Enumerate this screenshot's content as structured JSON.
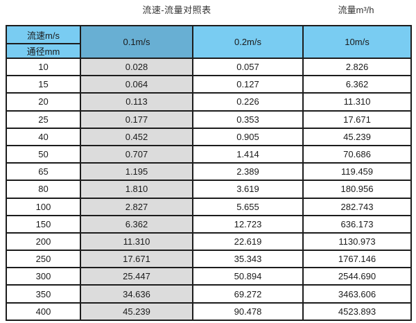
{
  "page": {
    "title": "流速-流量对照表",
    "unit_label": "流量m³/h"
  },
  "table": {
    "corner_top": "流速m/s",
    "corner_bottom": "通径mm",
    "speed_columns": [
      "0.1m/s",
      "0.2m/s",
      "10m/s"
    ],
    "rows": [
      {
        "diameter": "10",
        "values": [
          "0.028",
          "0.057",
          "2.826"
        ]
      },
      {
        "diameter": "15",
        "values": [
          "0.064",
          "0.127",
          "6.362"
        ]
      },
      {
        "diameter": "20",
        "values": [
          "0.113",
          "0.226",
          "11.310"
        ]
      },
      {
        "diameter": "25",
        "values": [
          "0.177",
          "0.353",
          "17.671"
        ]
      },
      {
        "diameter": "40",
        "values": [
          "0.452",
          "0.905",
          "45.239"
        ]
      },
      {
        "diameter": "50",
        "values": [
          "0.707",
          "1.414",
          "70.686"
        ]
      },
      {
        "diameter": "65",
        "values": [
          "1.195",
          "2.389",
          "119.459"
        ]
      },
      {
        "diameter": "80",
        "values": [
          "1.810",
          "3.619",
          "180.956"
        ]
      },
      {
        "diameter": "100",
        "values": [
          "2.827",
          "5.655",
          "282.743"
        ]
      },
      {
        "diameter": "150",
        "values": [
          "6.362",
          "12.723",
          "636.173"
        ]
      },
      {
        "diameter": "200",
        "values": [
          "11.310",
          "22.619",
          "1130.973"
        ]
      },
      {
        "diameter": "250",
        "values": [
          "17.671",
          "35.343",
          "1767.146"
        ]
      },
      {
        "diameter": "300",
        "values": [
          "25.447",
          "50.894",
          "2544.690"
        ]
      },
      {
        "diameter": "350",
        "values": [
          "34.636",
          "69.272",
          "3463.606"
        ]
      },
      {
        "diameter": "400",
        "values": [
          "45.239",
          "90.478",
          "4523.893"
        ]
      }
    ]
  },
  "colors": {
    "header_blue": "#79CCF2",
    "header_blue_dark": "#68AFD3",
    "gray_column": "#DCDCDC",
    "grid_border": "#1c1c1c",
    "text": "#1a1a1a"
  },
  "chart_data": {
    "type": "table",
    "title": "流速-流量对照表",
    "unit": "流量m³/h",
    "corner_labels": {
      "columns_meaning": "流速m/s",
      "rows_meaning": "通径mm"
    },
    "columns": [
      "通径mm",
      "0.1m/s",
      "0.2m/s",
      "10m/s"
    ],
    "rows": [
      [
        10,
        0.028,
        0.057,
        2.826
      ],
      [
        15,
        0.064,
        0.127,
        6.362
      ],
      [
        20,
        0.113,
        0.226,
        11.31
      ],
      [
        25,
        0.177,
        0.353,
        17.671
      ],
      [
        40,
        0.452,
        0.905,
        45.239
      ],
      [
        50,
        0.707,
        1.414,
        70.686
      ],
      [
        65,
        1.195,
        2.389,
        119.459
      ],
      [
        80,
        1.81,
        3.619,
        180.956
      ],
      [
        100,
        2.827,
        5.655,
        282.743
      ],
      [
        150,
        6.362,
        12.723,
        636.173
      ],
      [
        200,
        11.31,
        22.619,
        1130.973
      ],
      [
        250,
        17.671,
        35.343,
        1767.146
      ],
      [
        300,
        25.447,
        50.894,
        2544.69
      ],
      [
        350,
        34.636,
        69.272,
        3463.606
      ],
      [
        400,
        45.239,
        90.478,
        4523.893
      ]
    ]
  }
}
